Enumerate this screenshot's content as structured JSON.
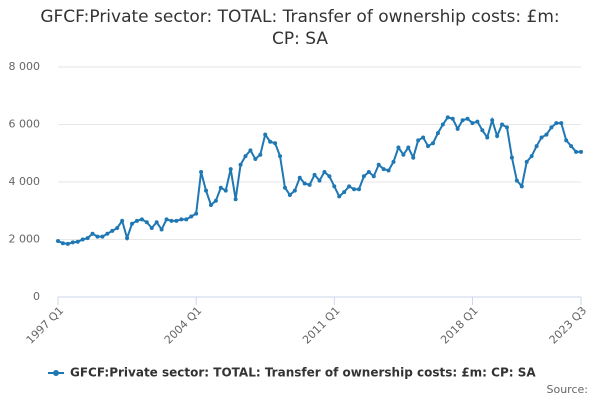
{
  "chart_data": {
    "type": "line",
    "title": "GFCF:Private sector: TOTAL: Transfer of ownership costs: £m: CP: SA",
    "source": "Source:",
    "categories": [
      "1997 Q1",
      null,
      null,
      null,
      null,
      null,
      null,
      null,
      null,
      null,
      null,
      null,
      null,
      null,
      null,
      null,
      null,
      null,
      null,
      null,
      null,
      null,
      null,
      null,
      null,
      null,
      null,
      null,
      "2004 Q1",
      null,
      null,
      null,
      null,
      null,
      null,
      null,
      null,
      null,
      null,
      null,
      null,
      null,
      null,
      null,
      null,
      null,
      null,
      null,
      null,
      null,
      null,
      null,
      null,
      null,
      null,
      null,
      "2011 Q1",
      null,
      null,
      null,
      null,
      null,
      null,
      null,
      null,
      null,
      null,
      null,
      null,
      null,
      null,
      null,
      null,
      null,
      null,
      null,
      null,
      null,
      null,
      null,
      null,
      null,
      null,
      null,
      "2018 Q1",
      null,
      null,
      null,
      null,
      null,
      null,
      null,
      null,
      null,
      null,
      null,
      null,
      null,
      null,
      null,
      null,
      null,
      null,
      null,
      null,
      null,
      "2023 Q3"
    ],
    "series": [
      {
        "name": "GFCF:Private sector: TOTAL: Transfer of ownership costs: £m: CP: SA",
        "color": "#1f78b4",
        "values": [
          1950,
          1870,
          1850,
          1900,
          1920,
          2000,
          2050,
          2200,
          2100,
          2100,
          2200,
          2300,
          2400,
          2650,
          2050,
          2550,
          2650,
          2700,
          2600,
          2400,
          2600,
          2350,
          2700,
          2650,
          2650,
          2700,
          2700,
          2800,
          2900,
          4350,
          3700,
          3200,
          3350,
          3800,
          3700,
          4450,
          3400,
          4600,
          4900,
          5100,
          4800,
          4950,
          5650,
          5400,
          5350,
          4900,
          3800,
          3550,
          3700,
          4150,
          3950,
          3900,
          4250,
          4050,
          4350,
          4200,
          3850,
          3500,
          3650,
          3850,
          3750,
          3750,
          4200,
          4350,
          4200,
          4600,
          4450,
          4400,
          4700,
          5200,
          4950,
          5200,
          4850,
          5450,
          5550,
          5250,
          5350,
          5700,
          6000,
          6250,
          6200,
          5850,
          6150,
          6200,
          6050,
          6100,
          5800,
          5550,
          6150,
          5600,
          6000,
          5900,
          4850,
          4050,
          3850,
          4700,
          4900,
          5250,
          5550,
          5650,
          5900,
          6050,
          6050,
          5450,
          5250,
          5050,
          5050
        ]
      }
    ],
    "ylim": [
      0,
      8000
    ],
    "yticks": [
      0,
      {
        "value": 2000,
        "label": "2 000"
      },
      {
        "value": 4000,
        "label": "4 000"
      },
      {
        "value": 6000,
        "label": "6 000"
      },
      {
        "value": 8000,
        "label": "8 000"
      }
    ],
    "grid": true
  }
}
